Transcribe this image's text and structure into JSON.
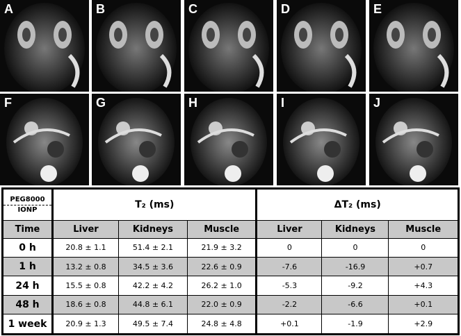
{
  "panels": [
    "A",
    "B",
    "C",
    "D",
    "E",
    "F",
    "G",
    "H",
    "I",
    "J"
  ],
  "table": {
    "corner": [
      "PEG8000",
      "IONP"
    ],
    "groups": [
      "T₂ (ms)",
      "ΔT₂ (ms)"
    ],
    "columns": [
      "Time",
      "Liver",
      "Kidneys",
      "Muscle",
      "Liver",
      "Kidneys",
      "Muscle"
    ],
    "rows": [
      [
        "0 h",
        "20.8 ± 1.1",
        "51.4 ± 2.1",
        "21.9 ± 3.2",
        "0",
        "0",
        "0"
      ],
      [
        "1 h",
        "13.2 ± 0.8",
        "34.5 ± 3.6",
        "22.6 ± 0.9",
        "-7.6",
        "-16.9",
        "+0.7"
      ],
      [
        "24 h",
        "15.5 ± 0.8",
        "42.2 ± 4.2",
        "26.2 ± 1.0",
        "-5.3",
        "-9.2",
        "+4.3"
      ],
      [
        "48 h",
        "18.6 ± 0.8",
        "44.8 ± 6.1",
        "22.0 ± 0.9",
        "-2.2",
        "-6.6",
        "+0.1"
      ],
      [
        "1 week",
        "20.9 ± 1.3",
        "49.5 ± 7.4",
        "24.8 ± 4.8",
        "+0.1",
        "-1.9",
        "+2.9"
      ]
    ]
  }
}
